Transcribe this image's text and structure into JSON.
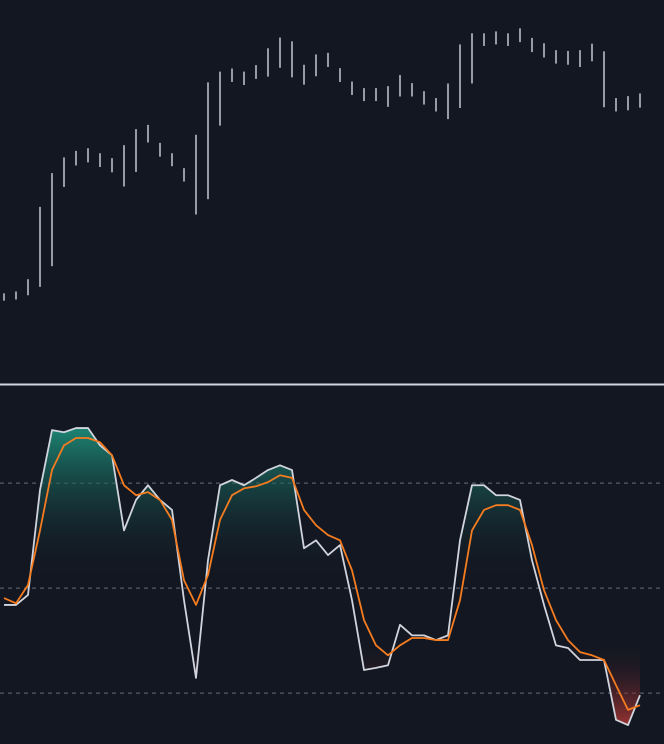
{
  "chart_data": [
    {
      "type": "range_bar",
      "color": "#d1d4dc",
      "ylim": [
        0,
        100
      ],
      "lows": [
        21.5,
        21.8,
        22.9,
        25.1,
        30.5,
        51.2,
        56.8,
        57.6,
        56.4,
        55.0,
        51.3,
        55.1,
        62.8,
        59.1,
        56.6,
        52.6,
        44.0,
        48.0,
        67.2,
        78.6,
        77.8,
        79.4,
        80.0,
        82.3,
        79.8,
        77.9,
        80.1,
        82.5,
        78.6,
        75.2,
        73.6,
        73.6,
        72.1,
        74.8,
        74.8,
        72.7,
        70.9,
        68.9,
        71.8,
        78.2,
        88.0,
        88.4,
        88.0,
        89.0,
        86.4,
        85.0,
        83.4,
        83.1,
        82.5,
        84.0,
        72.0,
        70.9,
        71.2,
        71.9
      ],
      "highs": [
        23.4,
        23.9,
        27.1,
        46.0,
        54.8,
        58.9,
        60.6,
        61.3,
        60.0,
        58.7,
        62.1,
        66.3,
        67.4,
        62.7,
        60.0,
        56.1,
        64.8,
        78.5,
        81.3,
        82.1,
        81.3,
        83.0,
        87.4,
        90.2,
        89.2,
        83.1,
        85.8,
        86.2,
        82.2,
        78.7,
        77.0,
        77.0,
        77.5,
        80.4,
        78.3,
        76.2,
        74.4,
        78.2,
        88.4,
        91.3,
        91.3,
        91.8,
        91.3,
        92.6,
        90.1,
        88.7,
        86.9,
        86.7,
        86.9,
        88.6,
        86.6,
        74.4,
        74.9,
        75.6
      ]
    },
    {
      "type": "line",
      "ylim": [
        20.3,
        88.7
      ],
      "yticks": [
        30,
        50,
        70
      ],
      "grid": true,
      "series": [
        {
          "color": "#d1d4dc",
          "values": [
            46.8,
            46.8,
            48.7,
            68.7,
            80.1,
            79.7,
            80.5,
            80.5,
            77.2,
            75.3,
            61.0,
            66.8,
            69.6,
            66.8,
            64.9,
            47.7,
            32.9,
            55.3,
            69.6,
            70.6,
            69.6,
            71.0,
            72.5,
            73.4,
            72.5,
            57.6,
            59.1,
            56.3,
            58.2,
            47.7,
            34.4,
            34.8,
            35.3,
            43.0,
            41.0,
            41.0,
            40.1,
            41.0,
            59.1,
            69.6,
            69.6,
            67.7,
            67.7,
            66.8,
            55.3,
            46.8,
            39.1,
            38.6,
            36.3,
            36.3,
            36.3,
            24.9,
            23.9,
            29.6
          ]
        },
        {
          "color": "#f57c1f",
          "values": [
            48.1,
            47.1,
            50.6,
            61.0,
            72.5,
            77.2,
            78.6,
            78.6,
            77.8,
            75.3,
            69.6,
            67.7,
            68.3,
            66.8,
            63.0,
            51.5,
            46.8,
            52.5,
            63.0,
            67.7,
            69.0,
            69.4,
            70.2,
            71.5,
            71.0,
            64.9,
            62.0,
            60.1,
            59.1,
            53.4,
            43.9,
            39.1,
            37.2,
            39.1,
            40.5,
            40.5,
            40.1,
            40.1,
            47.7,
            61.0,
            64.9,
            65.8,
            65.8,
            64.9,
            58.2,
            49.6,
            43.9,
            40.1,
            37.8,
            37.2,
            36.3,
            31.5,
            26.8,
            27.7
          ]
        }
      ]
    }
  ]
}
